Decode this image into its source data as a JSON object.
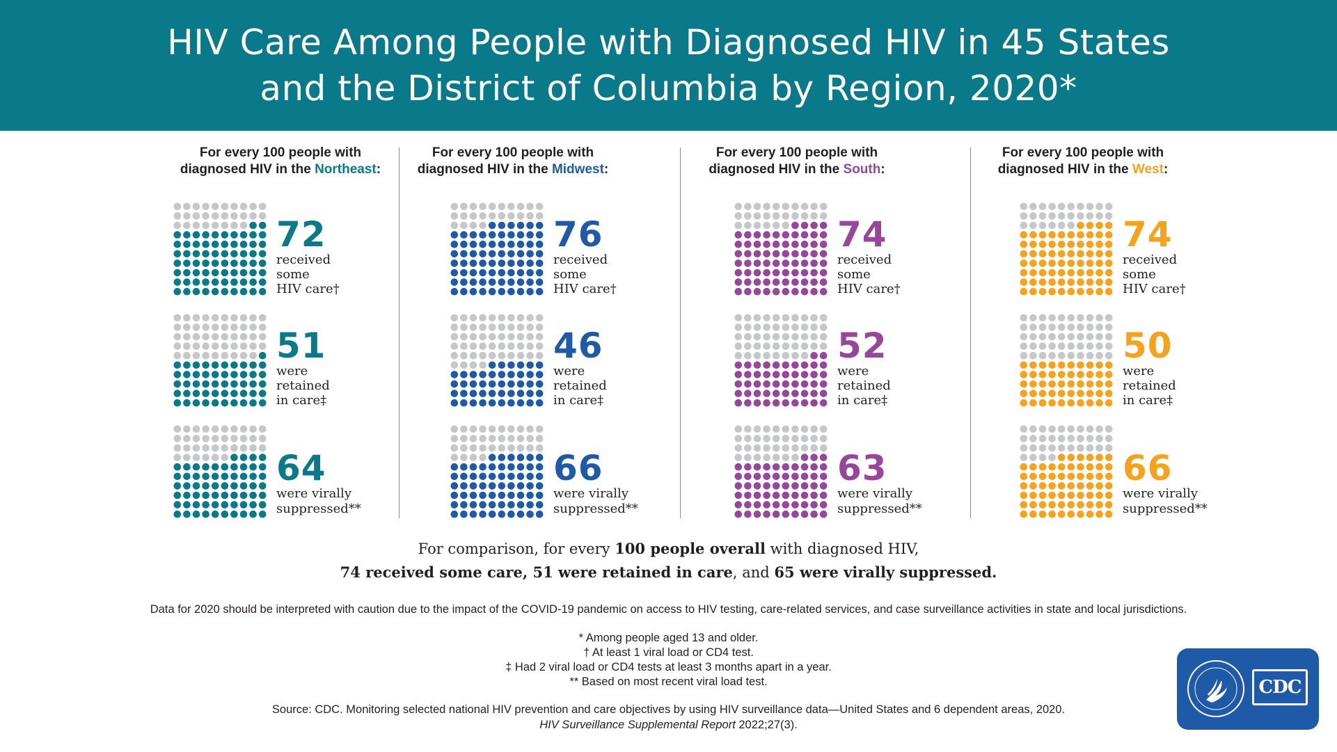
{
  "title_line1": "HIV Care Among People with Diagnosed HIV in 45 States",
  "title_line2": "and the District of Columbia by Region, 2020*",
  "colors": {
    "banner": "#0a7a8a",
    "gray_dot": "#c6c7c9",
    "northeast": "#0a7a8a",
    "midwest": "#1f5aa8",
    "south": "#97479b",
    "west": "#f6a21c"
  },
  "panel_prefix_1": "For every 100 people with",
  "panel_prefix_2": "diagnosed HIV in the ",
  "stat_labels": {
    "care": "received\nsome\nHIV care†",
    "retained": "were\nretained\nin care‡",
    "suppressed": "were virally\nsuppressed**"
  },
  "chart_data": {
    "type": "waffle",
    "total_per_grid": 100,
    "categories": [
      "Northeast",
      "Midwest",
      "South",
      "West"
    ],
    "series": [
      {
        "name": "received some HIV care",
        "values": [
          72,
          76,
          74,
          74
        ]
      },
      {
        "name": "were retained in care",
        "values": [
          51,
          46,
          52,
          50
        ]
      },
      {
        "name": "were virally suppressed",
        "values": [
          64,
          66,
          63,
          66
        ]
      }
    ]
  },
  "regions": [
    {
      "name": "Northeast",
      "color": "#0a7a8a",
      "care": "72",
      "retained": "51",
      "suppressed": "64"
    },
    {
      "name": "Midwest",
      "color": "#1f5aa8",
      "care": "76",
      "retained": "46",
      "suppressed": "66"
    },
    {
      "name": "South",
      "color": "#97479b",
      "care": "74",
      "retained": "52",
      "suppressed": "63"
    },
    {
      "name": "West",
      "color": "#f6a21c",
      "care": "74",
      "retained": "50",
      "suppressed": "66"
    }
  ],
  "comparison": {
    "l1_a": "For comparison, for every ",
    "l1_b": "100 people overall",
    "l1_c": " with diagnosed HIV,",
    "l2_a": "74 received some care, 51 were retained in care",
    "l2_b": ", and ",
    "l2_c": "65 were virally suppressed."
  },
  "caution": "Data for 2020 should be interpreted with caution due to the impact of the COVID-19 pandemic on access to HIV testing, care-related services, and case surveillance activities in state and local jurisdictions.",
  "footnotes": [
    "* Among people aged 13 and older.",
    "† At least 1 viral load or CD4 test.",
    "‡ Had 2 viral load or CD4 tests at least 3 months apart in a year.",
    "** Based on most recent viral load test."
  ],
  "source_line1": "Source: CDC. Monitoring selected national HIV prevention and care objectives by using HIV surveillance data—United States and 6 dependent areas, 2020.",
  "source_italic": "HIV Surveillance Supplemental Report",
  "source_rest": " 2022;27(3).",
  "logo_text": "CDC"
}
